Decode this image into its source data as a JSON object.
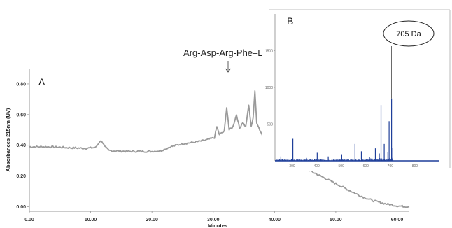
{
  "chart_data": [
    {
      "type": "line",
      "panel": "A",
      "xlabel": "Minutes",
      "ylabel": "Absorbances 215nm (UV)",
      "xlim": [
        0,
        62
      ],
      "ylim": [
        -0.03,
        0.9
      ],
      "x_ticks": [
        "0.00",
        "10.00",
        "20.00",
        "30.00",
        "40.00",
        "50.00",
        "60.00"
      ],
      "y_ticks": [
        "0.00",
        "0.20",
        "0.40",
        "0.60",
        "0.80"
      ],
      "grid": false,
      "annotation": "Arg-Asp-Arg-Phe–Leu",
      "annotation_x": 36.8,
      "line_color": "#9a9a9a",
      "points": [
        [
          0,
          0.39
        ],
        [
          3,
          0.39
        ],
        [
          6,
          0.385
        ],
        [
          9,
          0.38
        ],
        [
          10.8,
          0.385
        ],
        [
          11.4,
          0.42
        ],
        [
          11.8,
          0.43
        ],
        [
          12.3,
          0.39
        ],
        [
          13,
          0.365
        ],
        [
          16,
          0.36
        ],
        [
          20,
          0.36
        ],
        [
          21.5,
          0.365
        ],
        [
          23,
          0.39
        ],
        [
          25,
          0.41
        ],
        [
          27,
          0.42
        ],
        [
          29,
          0.435
        ],
        [
          30.2,
          0.45
        ],
        [
          30.6,
          0.52
        ],
        [
          31,
          0.47
        ],
        [
          31.8,
          0.49
        ],
        [
          32.2,
          0.65
        ],
        [
          32.6,
          0.5
        ],
        [
          33.2,
          0.52
        ],
        [
          33.8,
          0.6
        ],
        [
          34.3,
          0.51
        ],
        [
          34.8,
          0.55
        ],
        [
          35.3,
          0.52
        ],
        [
          35.8,
          0.66
        ],
        [
          36.2,
          0.52
        ],
        [
          36.5,
          0.58
        ],
        [
          36.8,
          0.75
        ],
        [
          37.1,
          0.55
        ],
        [
          37.6,
          0.5
        ],
        [
          38.2,
          0.45
        ],
        [
          39,
          0.42
        ],
        [
          40,
          0.38
        ],
        [
          42,
          0.32
        ],
        [
          44,
          0.27
        ],
        [
          46,
          0.23
        ],
        [
          48,
          0.19
        ],
        [
          50,
          0.15
        ],
        [
          52,
          0.11
        ],
        [
          54,
          0.07
        ],
        [
          56,
          0.04
        ],
        [
          58,
          0.02
        ],
        [
          60,
          0.005
        ],
        [
          62,
          0.0
        ]
      ]
    },
    {
      "type": "bar",
      "panel": "B",
      "label": "705 Da",
      "xlim": [
        230,
        900
      ],
      "ylim": [
        0,
        2000
      ],
      "x_ticks": [
        "300",
        "400",
        "500",
        "600",
        "700",
        "800"
      ],
      "y_ticks": [
        "500",
        "1000",
        "1500"
      ],
      "bar_color": "#1f3f9a",
      "peaks": [
        [
          254,
          60
        ],
        [
          303,
          300
        ],
        [
          358,
          40
        ],
        [
          402,
          110
        ],
        [
          447,
          60
        ],
        [
          502,
          90
        ],
        [
          556,
          230
        ],
        [
          582,
          130
        ],
        [
          615,
          55
        ],
        [
          639,
          170
        ],
        [
          655,
          100
        ],
        [
          662,
          760
        ],
        [
          675,
          230
        ],
        [
          690,
          120
        ],
        [
          695,
          540
        ],
        [
          705,
          850
        ],
        [
          710,
          180
        ]
      ]
    }
  ]
}
